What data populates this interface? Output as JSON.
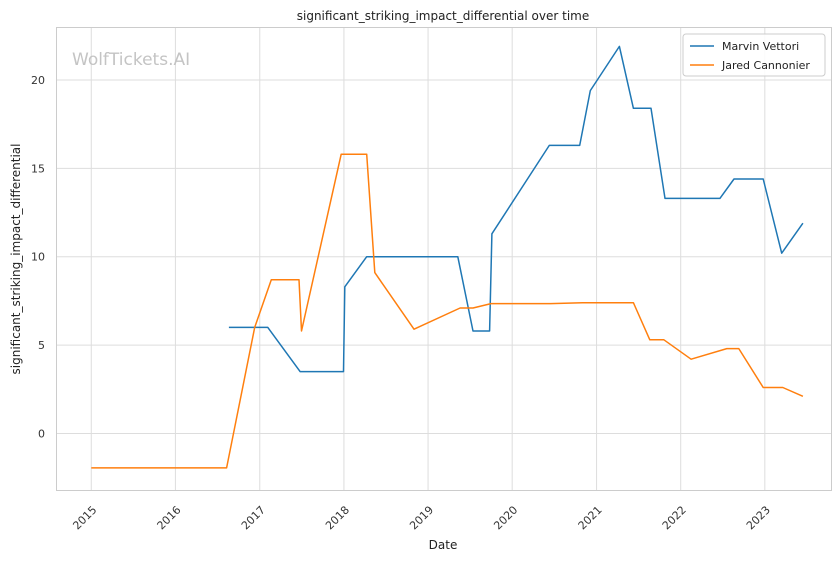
{
  "watermark": "WolfTickets.AI",
  "chart_data": {
    "type": "line",
    "title": "significant_striking_impact_differential over time",
    "xlabel": "Date",
    "ylabel": "significant_striking_impact_differential",
    "xlim": [
      "2014-08-01",
      "2023-10-15"
    ],
    "ylim": [
      -3.2,
      23
    ],
    "x_ticks": [
      "2015",
      "2016",
      "2017",
      "2018",
      "2019",
      "2020",
      "2021",
      "2022",
      "2023"
    ],
    "y_ticks": [
      0,
      5,
      10,
      15,
      20
    ],
    "grid": true,
    "legend_position": "top-right",
    "series": [
      {
        "name": "Marvin Vettori",
        "color": "#1f77b4",
        "points": [
          [
            "2016-08-20",
            6.0
          ],
          [
            "2017-02-05",
            6.0
          ],
          [
            "2017-06-25",
            3.5
          ],
          [
            "2017-12-30",
            3.5
          ],
          [
            "2018-01-05",
            8.3
          ],
          [
            "2018-04-10",
            10.0
          ],
          [
            "2019-05-10",
            10.0
          ],
          [
            "2019-07-15",
            5.8
          ],
          [
            "2019-09-25",
            5.8
          ],
          [
            "2019-10-05",
            11.3
          ],
          [
            "2020-06-10",
            16.3
          ],
          [
            "2020-10-20",
            16.3
          ],
          [
            "2020-12-05",
            19.4
          ],
          [
            "2021-04-10",
            21.9
          ],
          [
            "2021-06-10",
            18.4
          ],
          [
            "2021-08-25",
            18.4
          ],
          [
            "2021-10-25",
            13.3
          ],
          [
            "2022-06-20",
            13.3
          ],
          [
            "2022-08-20",
            14.4
          ],
          [
            "2022-12-25",
            14.4
          ],
          [
            "2023-03-15",
            10.2
          ],
          [
            "2023-06-15",
            11.9
          ]
        ]
      },
      {
        "name": "Jared Cannonier",
        "color": "#ff7f0e",
        "points": [
          [
            "2015-01-01",
            -1.95
          ],
          [
            "2016-08-10",
            -1.95
          ],
          [
            "2016-12-10",
            6.0
          ],
          [
            "2017-02-20",
            8.7
          ],
          [
            "2017-06-20",
            8.7
          ],
          [
            "2017-07-01",
            5.8
          ],
          [
            "2017-12-20",
            15.8
          ],
          [
            "2018-04-10",
            15.8
          ],
          [
            "2018-05-15",
            9.1
          ],
          [
            "2018-11-01",
            5.9
          ],
          [
            "2019-05-20",
            7.1
          ],
          [
            "2019-07-15",
            7.1
          ],
          [
            "2019-10-01",
            7.35
          ],
          [
            "2020-06-15",
            7.35
          ],
          [
            "2020-11-01",
            7.4
          ],
          [
            "2021-06-10",
            7.4
          ],
          [
            "2021-08-20",
            5.3
          ],
          [
            "2021-10-20",
            5.3
          ],
          [
            "2022-02-15",
            4.2
          ],
          [
            "2022-07-20",
            4.8
          ],
          [
            "2022-09-10",
            4.8
          ],
          [
            "2022-12-25",
            2.6
          ],
          [
            "2023-03-20",
            2.6
          ],
          [
            "2023-06-15",
            2.1
          ]
        ]
      }
    ]
  }
}
